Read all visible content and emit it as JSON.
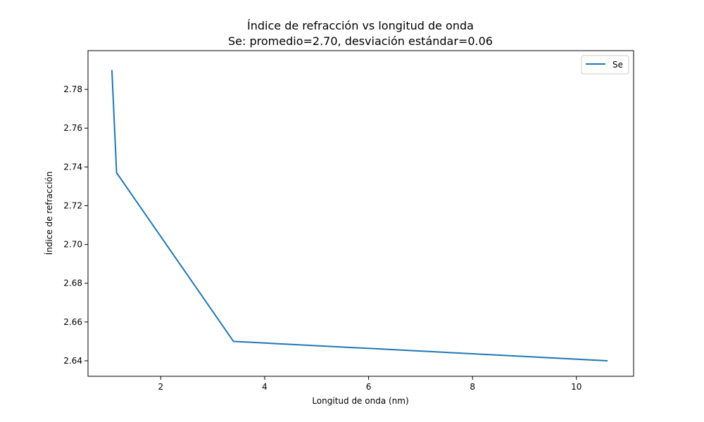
{
  "chart_data": {
    "type": "line",
    "title": "Índice de refracción vs longitud de onda",
    "subtitle": "Se: promedio=2.70, desviación estándar=0.06",
    "xlabel": "Longitud de onda (nm)",
    "ylabel": "Índice de refracción",
    "xlim": [
      0.6,
      11.1
    ],
    "ylim": [
      2.632,
      2.8
    ],
    "xticks": [
      2,
      4,
      6,
      8,
      10
    ],
    "xtick_labels": [
      "2",
      "4",
      "6",
      "8",
      "10"
    ],
    "yticks": [
      2.64,
      2.66,
      2.68,
      2.7,
      2.72,
      2.74,
      2.76,
      2.78
    ],
    "ytick_labels": [
      "2.64",
      "2.66",
      "2.68",
      "2.70",
      "2.72",
      "2.74",
      "2.76",
      "2.78"
    ],
    "grid": false,
    "legend_position": "top-right",
    "series": [
      {
        "name": "Se",
        "color": "#1f77b4",
        "x": [
          1.06,
          1.15,
          3.4,
          10.6
        ],
        "y": [
          2.79,
          2.737,
          2.65,
          2.64
        ]
      }
    ]
  }
}
